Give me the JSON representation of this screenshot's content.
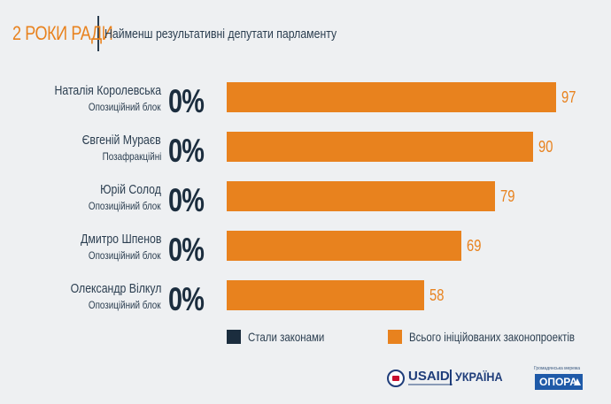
{
  "header": {
    "brand": "2 РОКИ РАДИ",
    "subtitle": "Найменш результативні депутати парламенту"
  },
  "colors": {
    "accent": "#e8821e",
    "dark": "#1b2d3e",
    "background": "#eef0f2"
  },
  "chart_data": {
    "type": "bar",
    "orientation": "horizontal",
    "categories": [
      "Наталія Королевська",
      "Євгеній Мураєв",
      "Юрій Солод",
      "Дмитро Шпенов",
      "Олександр Вілкул"
    ],
    "parties": [
      "Опозиційний блок",
      "Позафракційні",
      "Опозиційний блок",
      "Опозиційний блок",
      "Опозиційний блок"
    ],
    "percent_labels": [
      "0%",
      "0%",
      "0%",
      "0%",
      "0%"
    ],
    "series": [
      {
        "name": "Стали законами",
        "color": "#1b2d3e",
        "values": [
          0,
          0,
          0,
          0,
          0
        ]
      },
      {
        "name": "Всього ініційованих законопроектів",
        "color": "#e8821e",
        "values": [
          97,
          90,
          79,
          69,
          58
        ]
      }
    ],
    "xlim": [
      0,
      100
    ],
    "legend": "bottom"
  },
  "logos": {
    "usaid": "USAID",
    "ukraine": "УКРАЇНА",
    "opora": "ОПОРА",
    "opora_tag": "Громадянська мережа"
  }
}
